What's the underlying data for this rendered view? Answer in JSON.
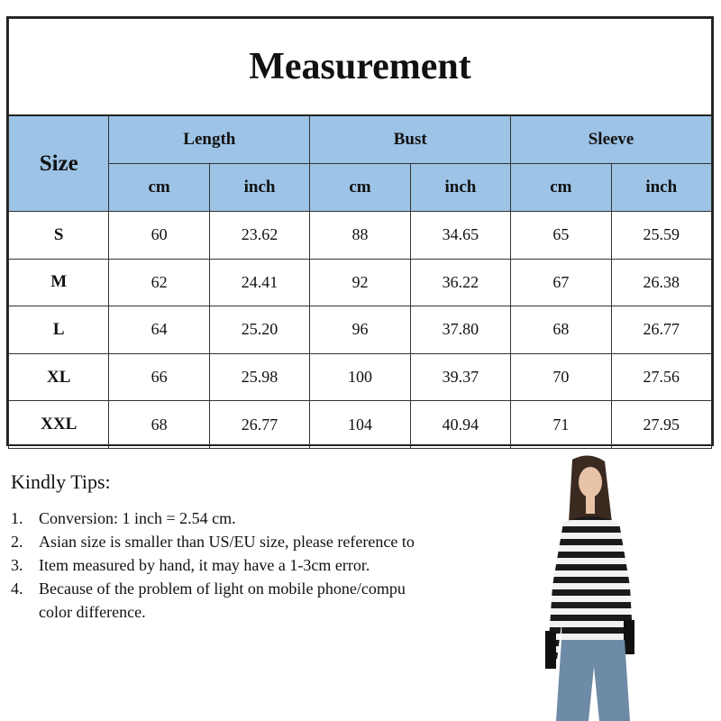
{
  "title": "Measurement",
  "header": {
    "size": "Size",
    "groups": [
      "Length",
      "Bust",
      "Sleeve"
    ],
    "units": [
      "cm",
      "inch",
      "cm",
      "inch",
      "cm",
      "inch"
    ]
  },
  "rows": [
    [
      "S",
      "60",
      "23.62",
      "88",
      "34.65",
      "65",
      "25.59"
    ],
    [
      "M",
      "62",
      "24.41",
      "92",
      "36.22",
      "67",
      "26.38"
    ],
    [
      "L",
      "64",
      "25.20",
      "96",
      "37.80",
      "68",
      "26.77"
    ],
    [
      "XL",
      "66",
      "25.98",
      "100",
      "39.37",
      "70",
      "27.56"
    ],
    [
      "XXL",
      "68",
      "26.77",
      "104",
      "40.94",
      "71",
      "27.95"
    ]
  ],
  "tips": {
    "heading": "Kindly Tips:",
    "items": [
      {
        "num": "1.",
        "text": "Conversion: 1 inch = 2.54 cm."
      },
      {
        "num": "2.",
        "text": "Asian size is smaller than US/EU size, please reference to"
      },
      {
        "num": "3.",
        "text": "Item measured by hand, it may have a 1-3cm error."
      },
      {
        "num": "4.",
        "text": "Because of the problem of light on mobile phone/compu"
      },
      {
        "num": "",
        "text": "color difference."
      }
    ]
  },
  "colors": {
    "header_bg": "#9dc3e6"
  },
  "photo": {
    "subject": "model-wearing-striped-long-sleeve-top-icon"
  }
}
